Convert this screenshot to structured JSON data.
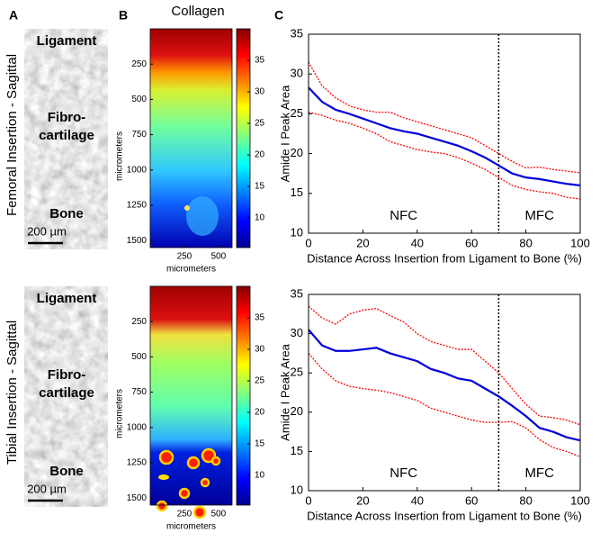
{
  "panels": {
    "a": "A",
    "b": "B",
    "c": "C"
  },
  "row_labels": [
    "Femoral Insertion - Sagittal",
    "Tibial Insertion - Sagittal"
  ],
  "tissue_labels": {
    "ligament": "Ligament",
    "fibro": [
      "Fibro-",
      "cartilage"
    ],
    "bone": "Bone"
  },
  "scale_bar": "200 µm",
  "heatmap": {
    "title": "Collagen",
    "xlabel": "micrometers",
    "ylabel": "micrometers",
    "xlim": [
      0,
      600
    ],
    "xticks": [
      250,
      500
    ],
    "ylim": [
      0,
      1550
    ],
    "yticks": [
      250,
      500,
      750,
      1000,
      1250,
      1500
    ],
    "clim": [
      5.3,
      40
    ],
    "colorbar_ticks": [
      10,
      15,
      20,
      25,
      30,
      35
    ]
  },
  "chart_data": [
    {
      "type": "line",
      "xlabel": "Distance Across Insertion from Ligament to Bone (%)",
      "ylabel": "Amide I Peak Area",
      "x": [
        0,
        5,
        10,
        15,
        20,
        25,
        30,
        35,
        40,
        45,
        50,
        55,
        60,
        65,
        70,
        75,
        80,
        85,
        90,
        95,
        100
      ],
      "series": [
        {
          "color": "#ff0000",
          "style": "dotted",
          "values": [
            31.5,
            28.5,
            27,
            26,
            25.5,
            25.2,
            25.2,
            24.5,
            24,
            23.5,
            23,
            22.5,
            22,
            21,
            20,
            19,
            18.2,
            18.3,
            18,
            17.8,
            17.6
          ]
        },
        {
          "color": "#ff0000",
          "style": "dotted",
          "values": [
            25.2,
            24.8,
            24.2,
            23.8,
            23.2,
            22.5,
            21.5,
            21,
            20.5,
            20.2,
            20,
            19.5,
            18.8,
            18,
            17,
            16,
            15.5,
            15.2,
            15,
            14.5,
            14.3
          ]
        },
        {
          "color": "#0000dd",
          "style": "solid",
          "values": [
            28.3,
            26.5,
            25.5,
            25,
            24.4,
            23.8,
            23.2,
            22.8,
            22.5,
            22,
            21.5,
            21,
            20.3,
            19.5,
            18.5,
            17.5,
            17,
            16.8,
            16.5,
            16.2,
            16
          ]
        }
      ],
      "xlim": [
        0,
        100
      ],
      "xticks": [
        0,
        20,
        40,
        60,
        80,
        100
      ],
      "ylim": [
        10,
        35
      ],
      "yticks": [
        10,
        15,
        20,
        25,
        30,
        35
      ],
      "divider_x": 70,
      "annotations": [
        "NFC",
        "MFC"
      ]
    },
    {
      "type": "line",
      "xlabel": "Distance Across Insertion from Ligament to Bone (%)",
      "ylabel": "Amide I Peak Area",
      "x": [
        0,
        5,
        10,
        15,
        20,
        25,
        30,
        35,
        40,
        45,
        50,
        55,
        60,
        65,
        70,
        75,
        80,
        85,
        90,
        95,
        100
      ],
      "series": [
        {
          "color": "#ff0000",
          "style": "dotted",
          "values": [
            33.5,
            32,
            31.2,
            32.5,
            33,
            33.2,
            32.3,
            31.5,
            30,
            29,
            28.5,
            28,
            28,
            26.5,
            25,
            23,
            21,
            19.5,
            19.3,
            19,
            18.4
          ]
        },
        {
          "color": "#ff0000",
          "style": "dotted",
          "values": [
            27.5,
            25.5,
            24,
            23.3,
            23,
            22.8,
            22.5,
            22,
            21.5,
            20.5,
            20,
            19.5,
            19,
            18.7,
            18.7,
            18.8,
            18,
            16.5,
            15.5,
            15,
            14.3
          ]
        },
        {
          "color": "#0000dd",
          "style": "solid",
          "values": [
            30.5,
            28.5,
            27.8,
            27.8,
            28,
            28.2,
            27.5,
            27,
            26.5,
            25.5,
            25,
            24.3,
            24,
            23,
            22,
            20.8,
            19.5,
            18,
            17.5,
            16.8,
            16.4
          ]
        }
      ],
      "xlim": [
        0,
        100
      ],
      "xticks": [
        0,
        20,
        40,
        60,
        80,
        100
      ],
      "ylim": [
        10,
        35
      ],
      "yticks": [
        10,
        15,
        20,
        25,
        30,
        35
      ],
      "divider_x": 70,
      "annotations": [
        "NFC",
        "MFC"
      ]
    }
  ]
}
